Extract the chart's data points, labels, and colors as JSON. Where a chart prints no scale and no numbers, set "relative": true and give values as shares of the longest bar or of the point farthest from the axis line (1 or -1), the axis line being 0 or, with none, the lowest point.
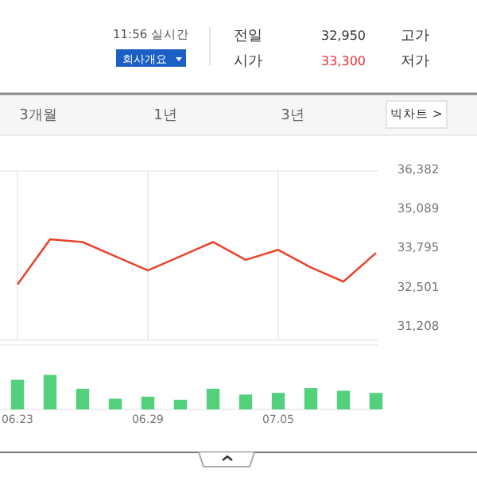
{
  "chart_data": [
    {
      "type": "other",
      "annotations": [
        "11:56 실시간",
        "회사개요",
        "전일",
        "32,950",
        "고가",
        "시가",
        "33,300",
        "저가",
        "3개월",
        "1년",
        "3년",
        "빅차트 >"
      ]
    },
    {
      "type": "line",
      "categories": [
        "06.23",
        null,
        null,
        null,
        "06.29",
        null,
        null,
        null,
        "07.05",
        null,
        null,
        null
      ],
      "series": [
        {
          "color": "#e8452c",
          "values": [
            32550,
            34040,
            33950,
            33480,
            33010,
            33480,
            33950,
            33360,
            33690,
            33110,
            32640,
            33590
          ]
        }
      ],
      "ylim": [
        30700,
        36382
      ],
      "yticks": [
        {
          "value": 31208,
          "label": "31,208"
        },
        {
          "value": 32501,
          "label": "32,501"
        },
        {
          "value": 33795,
          "label": "33,795"
        },
        {
          "value": 35089,
          "label": "35,089"
        },
        {
          "value": 36382,
          "label": "36,382"
        }
      ],
      "grid": "x",
      "tick_labels": "y"
    },
    {
      "type": "bar",
      "relative": true,
      "categories": [
        "06.23",
        null,
        null,
        null,
        "06.29",
        null,
        null,
        null,
        "07.05",
        null,
        null,
        null
      ],
      "series": [
        {
          "color": "#52d07c",
          "values": [
            0.86,
            1,
            0.6,
            0.31,
            0.37,
            0.28,
            0.6,
            0.43,
            0.48,
            0.62,
            0.54,
            0.48
          ]
        }
      ],
      "tick_labels": "x"
    }
  ]
}
